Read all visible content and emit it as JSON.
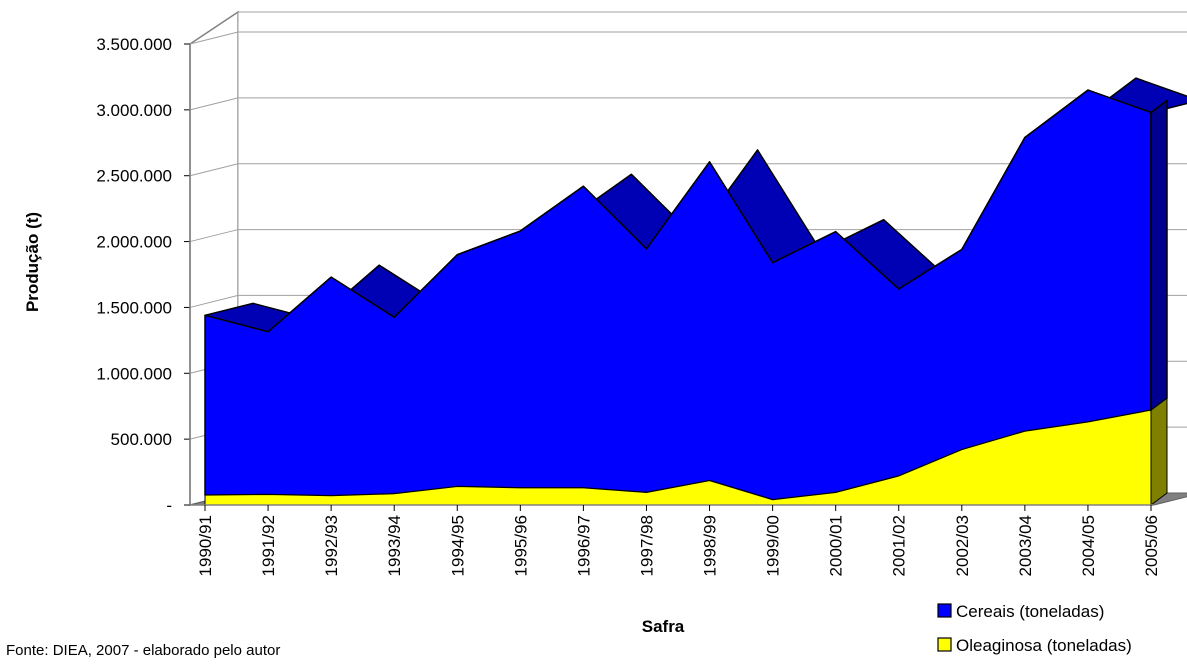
{
  "source_note": "Fonte: DIEA, 2007 - elaborado pelo autor",
  "colors": {
    "cereais": "#0000ff",
    "cereais_top": "#0000b4",
    "cereais_side": "#000090",
    "oleaginosa": "#ffff00",
    "oleaginosa_top": "#c8c800",
    "oleaginosa_side": "#808000",
    "floor": "#808080",
    "grid": "#a0a0a0"
  },
  "chart_data": {
    "type": "area",
    "stacked": true,
    "three_d": true,
    "xlabel": "Safra",
    "ylabel": "Produção (t)",
    "ylim": [
      0,
      3500000
    ],
    "ytick_labels": [
      "-",
      "500.000",
      "1.000.000",
      "1.500.000",
      "2.000.000",
      "2.500.000",
      "3.000.000",
      "3.500.000"
    ],
    "categories": [
      "1990/91",
      "1991/92",
      "1992/93",
      "1993/94",
      "1994/95",
      "1995/96",
      "1996/97",
      "1997/98",
      "1998/99",
      "1999/00",
      "2000/01",
      "2001/02",
      "2002/03",
      "2003/04",
      "2004/05",
      "2005/06"
    ],
    "series": [
      {
        "name": "Oleaginosa (toneladas)",
        "values": [
          75000,
          80000,
          70000,
          85000,
          140000,
          130000,
          130000,
          95000,
          185000,
          40000,
          95000,
          220000,
          420000,
          560000,
          630000,
          720000
        ]
      },
      {
        "name": "Cereais (toneladas)",
        "values": [
          1365000,
          1235000,
          1660000,
          1340000,
          1760000,
          1950000,
          2290000,
          1850000,
          2420000,
          1800000,
          1980000,
          1420000,
          1520000,
          2230000,
          2520000,
          2260000
        ]
      }
    ],
    "grid": true,
    "legend_position": "bottom-right"
  }
}
